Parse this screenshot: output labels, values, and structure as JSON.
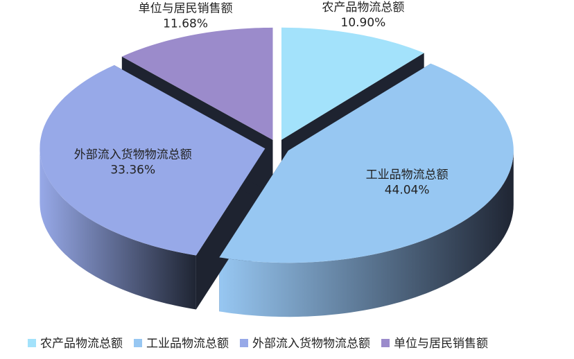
{
  "chart_data": {
    "type": "pie",
    "categories": [
      "农产品物流总额",
      "工业品物流总额",
      "外部流入货物物流总额",
      "单位与居民销售额"
    ],
    "values": [
      10.9,
      44.04,
      33.36,
      11.68
    ],
    "value_labels": [
      "10.90%",
      "44.04%",
      "33.36%",
      "11.68%"
    ],
    "colors": [
      "#a3e2fb",
      "#97c7f2",
      "#97a9e8",
      "#9b8bcb"
    ],
    "legend": "bottom"
  }
}
